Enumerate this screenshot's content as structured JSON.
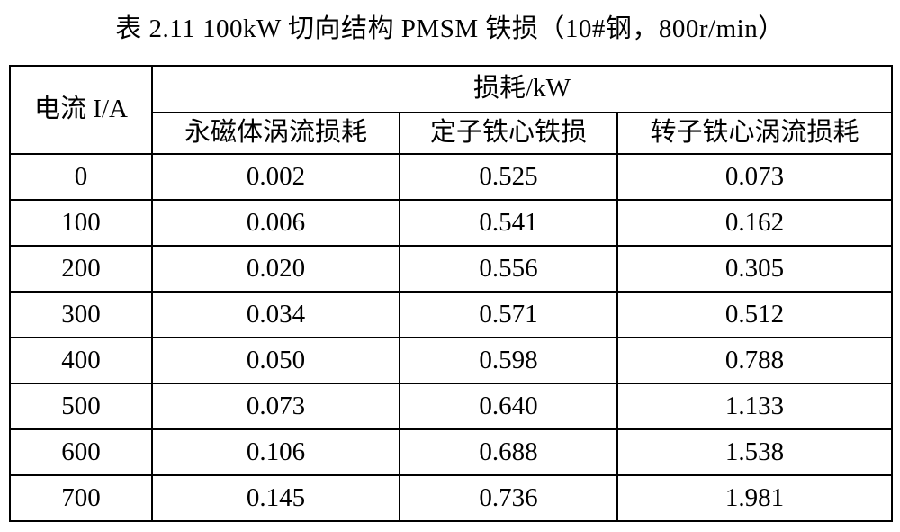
{
  "title": "表 2.11 100kW 切向结构 PMSM 铁损（10#钢，800r/min）",
  "table": {
    "corner_header": "电流 I/A",
    "group_header": "损耗/kW",
    "sub_headers": [
      "永磁体涡流损耗",
      "定子铁心铁损",
      "转子铁心涡流损耗"
    ],
    "rows": [
      {
        "current": "0",
        "values": [
          "0.002",
          "0.525",
          "0.073"
        ]
      },
      {
        "current": "100",
        "values": [
          "0.006",
          "0.541",
          "0.162"
        ]
      },
      {
        "current": "200",
        "values": [
          "0.020",
          "0.556",
          "0.305"
        ]
      },
      {
        "current": "300",
        "values": [
          "0.034",
          "0.571",
          "0.512"
        ]
      },
      {
        "current": "400",
        "values": [
          "0.050",
          "0.598",
          "0.788"
        ]
      },
      {
        "current": "500",
        "values": [
          "0.073",
          "0.640",
          "1.133"
        ]
      },
      {
        "current": "600",
        "values": [
          "0.106",
          "0.688",
          "1.538"
        ]
      },
      {
        "current": "700",
        "values": [
          "0.145",
          "0.736",
          "1.981"
        ]
      }
    ]
  },
  "chart_data": {
    "type": "table",
    "title": "表 2.11 100kW 切向结构 PMSM 铁损（10#钢，800r/min）",
    "columns": [
      "电流 I/A",
      "永磁体涡流损耗 (kW)",
      "定子铁心铁损 (kW)",
      "转子铁心涡流损耗 (kW)"
    ],
    "x": [
      0,
      100,
      200,
      300,
      400,
      500,
      600,
      700
    ],
    "series": [
      {
        "name": "永磁体涡流损耗",
        "values": [
          0.002,
          0.006,
          0.02,
          0.034,
          0.05,
          0.073,
          0.106,
          0.145
        ]
      },
      {
        "name": "定子铁心铁损",
        "values": [
          0.525,
          0.541,
          0.556,
          0.571,
          0.598,
          0.64,
          0.688,
          0.736
        ]
      },
      {
        "name": "转子铁心涡流损耗",
        "values": [
          0.073,
          0.162,
          0.305,
          0.512,
          0.788,
          1.133,
          1.538,
          1.981
        ]
      }
    ],
    "units": "kW"
  }
}
